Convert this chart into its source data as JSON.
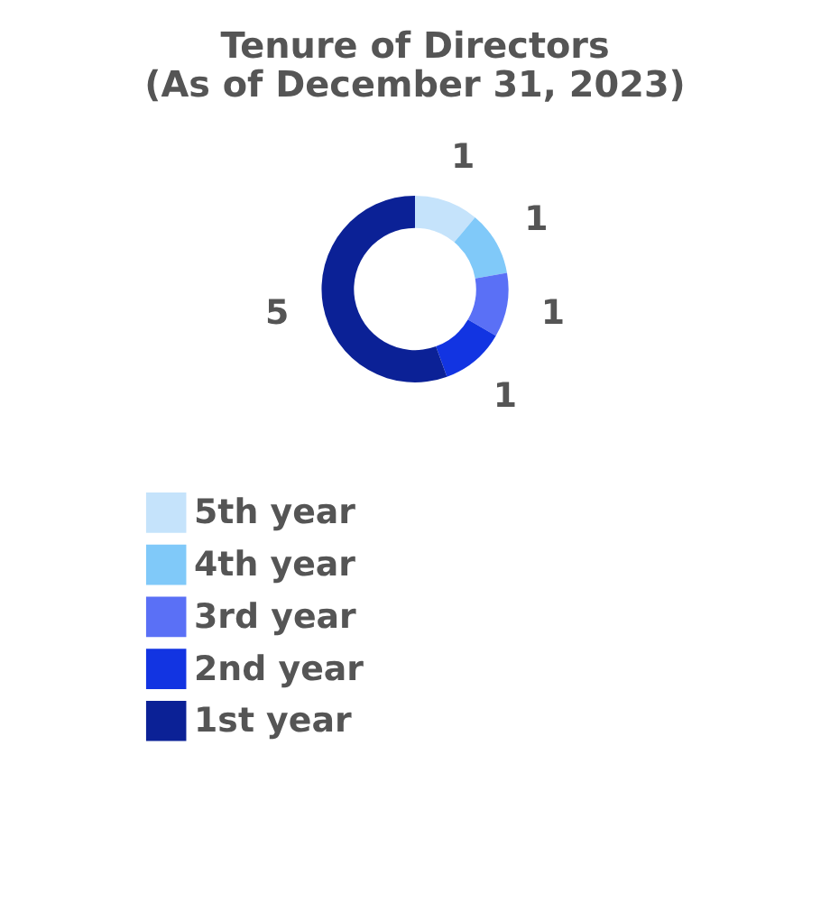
{
  "chart_data": {
    "type": "donut",
    "title": [
      "Tenure of Directors",
      "(As of December 31, 2023)"
    ],
    "categories": [
      "5th year",
      "4th year",
      "3rd year",
      "2nd year",
      "1st year"
    ],
    "values": [
      1,
      1,
      1,
      1,
      5
    ],
    "colors": [
      "#c5e3fb",
      "#80c9f9",
      "#5a70f6",
      "#1234e2",
      "#0b2196"
    ],
    "data_labels": true,
    "legend": "bottom"
  }
}
